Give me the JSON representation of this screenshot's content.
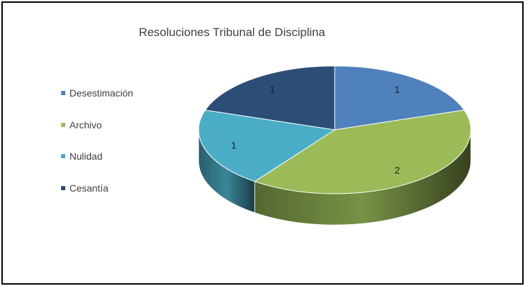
{
  "chart_data": {
    "type": "pie",
    "style": "3d",
    "title": "Resoluciones Tribunal de Disciplina",
    "legend_position": "left",
    "categories": [
      "Desestimación",
      "Archivo",
      "Nulidad",
      "Cesantía"
    ],
    "values": [
      1,
      2,
      1,
      1
    ],
    "data_labels": [
      "1",
      "2",
      "1",
      "1"
    ],
    "colors": [
      "#4f81bd",
      "#9bbb59",
      "#4bacc6",
      "#2c4d75"
    ]
  }
}
